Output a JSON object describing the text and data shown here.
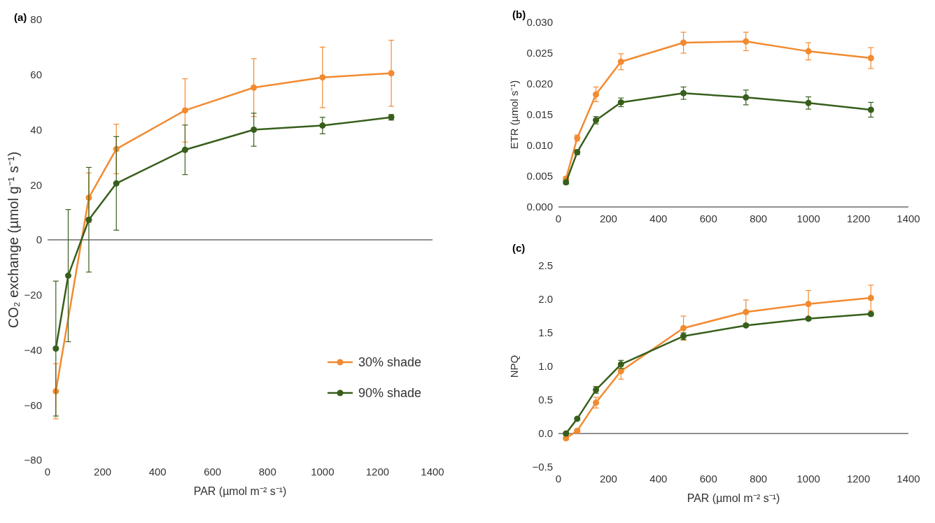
{
  "chart_data": [
    {
      "type": "line",
      "annotations": [
        "(a)"
      ],
      "xlabel": "PAR (µmol m⁻² s⁻¹)",
      "ylabel": "CO₂ exchange (µmol g⁻¹ s⁻¹)",
      "x": [
        30,
        75,
        150,
        250,
        500,
        750,
        1000,
        1250
      ],
      "xlim": [
        0,
        1400
      ],
      "xticks": [
        0,
        200,
        400,
        600,
        800,
        1000,
        1200,
        1400
      ],
      "ylim": [
        -80,
        80
      ],
      "yticks": [
        {
          "value": -80,
          "label": "−80"
        },
        {
          "value": -60,
          "label": "−60"
        },
        {
          "value": -40,
          "label": "−40"
        },
        {
          "value": -20,
          "label": "−20"
        },
        0,
        20,
        40,
        60,
        80
      ],
      "marker": "circle",
      "grid": false,
      "legend": "bottom right",
      "ref_lines": [
        {
          "axis": "y",
          "value": 0
        }
      ],
      "series": [
        {
          "name": "30% shade",
          "color": "#f28a30",
          "values": [
            -55,
            null,
            15.3,
            33,
            47,
            55.3,
            59,
            60.5
          ],
          "errors": [
            10,
            null,
            9,
            9,
            11.5,
            10.5,
            11,
            12
          ]
        },
        {
          "name": "90% shade",
          "color": "#375f1b",
          "values": [
            -39.5,
            -13,
            7.3,
            20.5,
            32.7,
            40,
            41.5,
            44.5
          ],
          "errors": [
            24.5,
            24,
            19,
            17,
            9,
            6,
            3,
            1
          ]
        }
      ]
    },
    {
      "type": "line",
      "annotations": [
        "(b)"
      ],
      "ylabel": "ETR (µmol s⁻¹)",
      "x": [
        30,
        75,
        150,
        250,
        500,
        750,
        1000,
        1250
      ],
      "xlim": [
        0,
        1400
      ],
      "xticks": [
        0,
        200,
        400,
        600,
        800,
        1000,
        1200,
        1400
      ],
      "ylim": [
        0,
        0.03
      ],
      "yticks": [
        {
          "value": 0,
          "label": "0.000"
        },
        {
          "value": 0.005,
          "label": "0.005"
        },
        {
          "value": 0.01,
          "label": "0.010"
        },
        {
          "value": 0.015,
          "label": "0.015"
        },
        {
          "value": 0.02,
          "label": "0.020"
        },
        {
          "value": 0.025,
          "label": "0.025"
        },
        {
          "value": 0.03,
          "label": "0.030"
        }
      ],
      "marker": "circle",
      "grid": false,
      "legend": false,
      "series": [
        {
          "color": "#f28a30",
          "values": [
            0.0046,
            0.0112,
            0.0183,
            0.0236,
            0.0267,
            0.0269,
            0.0253,
            0.0242
          ],
          "errors": [
            null,
            0.0005,
            0.0012,
            0.0013,
            0.0017,
            0.0015,
            0.0014,
            0.0017
          ]
        },
        {
          "color": "#375f1b",
          "values": [
            0.004,
            0.0089,
            0.0141,
            0.017,
            0.0185,
            0.0178,
            0.0169,
            0.0158
          ],
          "errors": [
            0.0003,
            0.0004,
            0.0006,
            0.0007,
            0.001,
            0.0012,
            0.001,
            0.0012
          ]
        }
      ]
    },
    {
      "type": "line",
      "annotations": [
        "(c)"
      ],
      "xlabel": "PAR (µmol m⁻² s⁻¹)",
      "ylabel": "NPQ",
      "x": [
        30,
        75,
        150,
        250,
        500,
        750,
        1000,
        1250
      ],
      "xlim": [
        0,
        1400
      ],
      "xticks": [
        0,
        200,
        400,
        600,
        800,
        1000,
        1200,
        1400
      ],
      "ylim": [
        -0.5,
        2.5
      ],
      "yticks": [
        {
          "value": -0.5,
          "label": "−0.5"
        },
        {
          "value": 0,
          "label": "0.0"
        },
        {
          "value": 0.5,
          "label": "0.5"
        },
        {
          "value": 1,
          "label": "1.0"
        },
        {
          "value": 1.5,
          "label": "1.5"
        },
        {
          "value": 2,
          "label": "2.0"
        },
        {
          "value": 2.5,
          "label": "2.5"
        }
      ],
      "marker": "circle",
      "grid": false,
      "legend": false,
      "ref_lines": [
        {
          "axis": "y",
          "value": 0
        }
      ],
      "series": [
        {
          "color": "#f28a30",
          "values": [
            -0.07,
            0.04,
            0.46,
            0.93,
            1.57,
            1.81,
            1.93,
            2.02
          ],
          "errors": [
            0.02,
            0.03,
            0.08,
            0.12,
            0.18,
            0.18,
            0.2,
            0.19
          ]
        },
        {
          "color": "#375f1b",
          "values": [
            0,
            0.22,
            0.65,
            1.03,
            1.45,
            1.61,
            1.71,
            1.78
          ],
          "errors": [
            0.02,
            0.02,
            0.05,
            0.06,
            0.05,
            0.02,
            0.02,
            0.02
          ]
        }
      ]
    }
  ]
}
